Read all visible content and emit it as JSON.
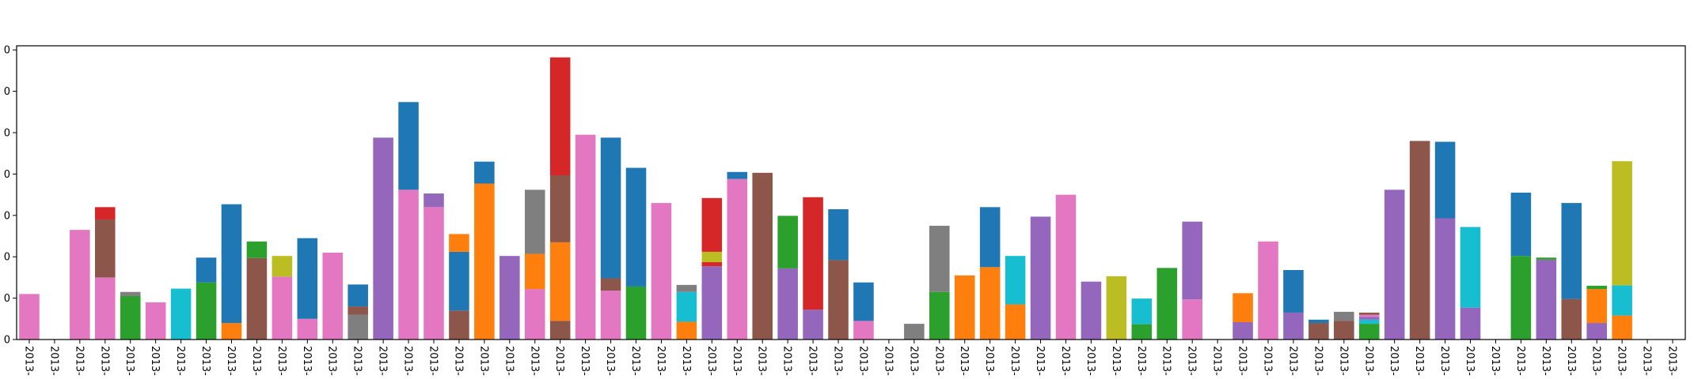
{
  "chart_data": {
    "type": "bar",
    "stacked": true,
    "title": "",
    "xlabel": "",
    "ylabel": "",
    "ylim": [
      0,
      7.1
    ],
    "yticks": [
      0,
      1,
      2,
      3,
      4,
      5,
      6,
      7
    ],
    "ytick_labels": [
      "0",
      "0",
      "0",
      "0",
      "0",
      "0",
      "0",
      "0"
    ],
    "xtick_label": "2013-",
    "grid": false,
    "legend": "none",
    "palette": {
      "blue": "#1f77b4",
      "orange": "#ff7f0e",
      "green": "#2ca02c",
      "red": "#d62728",
      "purple": "#9467bd",
      "brown": "#8c564b",
      "pink": "#e377c2",
      "gray": "#7f7f7f",
      "olive": "#bcbd22",
      "cyan": "#17becf"
    },
    "bars": [
      {
        "label": "2013-",
        "segments": [
          {
            "color": "pink",
            "value": 1.1
          }
        ]
      },
      {
        "label": "2013-",
        "segments": []
      },
      {
        "label": "2013-",
        "segments": [
          {
            "color": "pink",
            "value": 2.65
          }
        ]
      },
      {
        "label": "2013-",
        "segments": [
          {
            "color": "pink",
            "value": 1.5
          },
          {
            "color": "brown",
            "value": 1.4
          },
          {
            "color": "red",
            "value": 0.3
          }
        ]
      },
      {
        "label": "2013-",
        "segments": [
          {
            "color": "green",
            "value": 1.05
          },
          {
            "color": "gray",
            "value": 0.1
          }
        ]
      },
      {
        "label": "2013-",
        "segments": [
          {
            "color": "pink",
            "value": 0.9
          }
        ]
      },
      {
        "label": "2013-",
        "segments": [
          {
            "color": "cyan",
            "value": 1.23
          }
        ]
      },
      {
        "label": "2013-",
        "segments": [
          {
            "color": "green",
            "value": 1.38
          },
          {
            "color": "blue",
            "value": 0.6
          }
        ]
      },
      {
        "label": "2013-",
        "segments": [
          {
            "color": "orange",
            "value": 0.4
          },
          {
            "color": "blue",
            "value": 2.87
          }
        ]
      },
      {
        "label": "2013-",
        "segments": [
          {
            "color": "brown",
            "value": 1.97
          },
          {
            "color": "green",
            "value": 0.4
          }
        ]
      },
      {
        "label": "2013-",
        "segments": [
          {
            "color": "pink",
            "value": 1.52
          },
          {
            "color": "olive",
            "value": 0.5
          }
        ]
      },
      {
        "label": "2013-",
        "segments": [
          {
            "color": "pink",
            "value": 0.5
          },
          {
            "color": "blue",
            "value": 1.95
          }
        ]
      },
      {
        "label": "2013-",
        "segments": [
          {
            "color": "pink",
            "value": 2.1
          }
        ]
      },
      {
        "label": "2013-",
        "segments": [
          {
            "color": "gray",
            "value": 0.6
          },
          {
            "color": "brown",
            "value": 0.2
          },
          {
            "color": "blue",
            "value": 0.53
          }
        ]
      },
      {
        "label": "2013-",
        "segments": [
          {
            "color": "purple",
            "value": 4.88
          }
        ]
      },
      {
        "label": "2013-",
        "segments": [
          {
            "color": "pink",
            "value": 3.62
          },
          {
            "color": "blue",
            "value": 2.12
          }
        ]
      },
      {
        "label": "2013-",
        "segments": [
          {
            "color": "pink",
            "value": 3.2
          },
          {
            "color": "purple",
            "value": 0.33
          }
        ]
      },
      {
        "label": "2013-",
        "segments": [
          {
            "color": "brown",
            "value": 0.7
          },
          {
            "color": "blue",
            "value": 1.42
          },
          {
            "color": "orange",
            "value": 0.43
          }
        ]
      },
      {
        "label": "2013-",
        "segments": [
          {
            "color": "orange",
            "value": 3.77
          },
          {
            "color": "blue",
            "value": 0.53
          }
        ]
      },
      {
        "label": "2013-",
        "segments": [
          {
            "color": "purple",
            "value": 2.02
          }
        ]
      },
      {
        "label": "2013-",
        "segments": [
          {
            "color": "pink",
            "value": 1.22
          },
          {
            "color": "orange",
            "value": 0.85
          },
          {
            "color": "gray",
            "value": 1.55
          }
        ]
      },
      {
        "label": "2013-",
        "segments": [
          {
            "color": "brown",
            "value": 0.45
          },
          {
            "color": "orange",
            "value": 1.9
          },
          {
            "color": "brown",
            "value": 1.62
          },
          {
            "color": "red",
            "value": 2.85
          }
        ]
      },
      {
        "label": "2013-",
        "segments": [
          {
            "color": "pink",
            "value": 4.95
          }
        ]
      },
      {
        "label": "2013-",
        "segments": [
          {
            "color": "pink",
            "value": 1.18
          },
          {
            "color": "brown",
            "value": 0.3
          },
          {
            "color": "blue",
            "value": 3.4
          }
        ]
      },
      {
        "label": "2013-",
        "segments": [
          {
            "color": "green",
            "value": 1.28
          },
          {
            "color": "blue",
            "value": 2.87
          }
        ]
      },
      {
        "label": "2013-",
        "segments": [
          {
            "color": "pink",
            "value": 3.3
          }
        ]
      },
      {
        "label": "2013-",
        "segments": [
          {
            "color": "orange",
            "value": 0.43
          },
          {
            "color": "cyan",
            "value": 0.72
          },
          {
            "color": "gray",
            "value": 0.17
          }
        ]
      },
      {
        "label": "2013-",
        "segments": [
          {
            "color": "purple",
            "value": 1.77
          },
          {
            "color": "red",
            "value": 0.1
          },
          {
            "color": "olive",
            "value": 0.25
          },
          {
            "color": "red",
            "value": 1.3
          }
        ]
      },
      {
        "label": "2013-",
        "segments": [
          {
            "color": "pink",
            "value": 3.88
          },
          {
            "color": "blue",
            "value": 0.17
          }
        ]
      },
      {
        "label": "2013-",
        "segments": [
          {
            "color": "brown",
            "value": 4.03
          }
        ]
      },
      {
        "label": "2013-",
        "segments": [
          {
            "color": "purple",
            "value": 1.72
          },
          {
            "color": "green",
            "value": 1.27
          }
        ]
      },
      {
        "label": "2013-",
        "segments": [
          {
            "color": "purple",
            "value": 0.72
          },
          {
            "color": "red",
            "value": 2.72
          }
        ]
      },
      {
        "label": "2013-",
        "segments": [
          {
            "color": "brown",
            "value": 1.92
          },
          {
            "color": "blue",
            "value": 1.23
          }
        ]
      },
      {
        "label": "2013-",
        "segments": [
          {
            "color": "pink",
            "value": 0.45
          },
          {
            "color": "blue",
            "value": 0.93
          }
        ]
      },
      {
        "label": "2013-",
        "segments": []
      },
      {
        "label": "2013-",
        "segments": [
          {
            "color": "gray",
            "value": 0.38
          }
        ]
      },
      {
        "label": "2013-",
        "segments": [
          {
            "color": "green",
            "value": 1.15
          },
          {
            "color": "gray",
            "value": 1.6
          }
        ]
      },
      {
        "label": "2013-",
        "segments": [
          {
            "color": "orange",
            "value": 1.55
          }
        ]
      },
      {
        "label": "2013-",
        "segments": [
          {
            "color": "orange",
            "value": 1.75
          },
          {
            "color": "blue",
            "value": 1.45
          }
        ]
      },
      {
        "label": "2013-",
        "segments": [
          {
            "color": "orange",
            "value": 0.85
          },
          {
            "color": "cyan",
            "value": 1.17
          }
        ]
      },
      {
        "label": "2013-",
        "segments": [
          {
            "color": "purple",
            "value": 2.97
          }
        ]
      },
      {
        "label": "2013-",
        "segments": [
          {
            "color": "pink",
            "value": 3.5
          }
        ]
      },
      {
        "label": "2013-",
        "segments": [
          {
            "color": "purple",
            "value": 1.4
          }
        ]
      },
      {
        "label": "2013-",
        "segments": [
          {
            "color": "olive",
            "value": 1.53
          }
        ]
      },
      {
        "label": "2013-",
        "segments": [
          {
            "color": "green",
            "value": 0.37
          },
          {
            "color": "cyan",
            "value": 0.62
          }
        ]
      },
      {
        "label": "2013-",
        "segments": [
          {
            "color": "green",
            "value": 1.73
          }
        ]
      },
      {
        "label": "2013-",
        "segments": [
          {
            "color": "pink",
            "value": 0.97
          },
          {
            "color": "purple",
            "value": 1.88
          }
        ]
      },
      {
        "label": "2013-",
        "segments": []
      },
      {
        "label": "2013-",
        "segments": [
          {
            "color": "purple",
            "value": 0.42
          },
          {
            "color": "orange",
            "value": 0.7
          }
        ]
      },
      {
        "label": "2013-",
        "segments": [
          {
            "color": "pink",
            "value": 2.37
          }
        ]
      },
      {
        "label": "2013-",
        "segments": [
          {
            "color": "purple",
            "value": 0.65
          },
          {
            "color": "blue",
            "value": 1.03
          }
        ]
      },
      {
        "label": "2013-",
        "segments": [
          {
            "color": "brown",
            "value": 0.4
          },
          {
            "color": "blue",
            "value": 0.08
          }
        ]
      },
      {
        "label": "2013-",
        "segments": [
          {
            "color": "brown",
            "value": 0.45
          },
          {
            "color": "gray",
            "value": 0.22
          }
        ]
      },
      {
        "label": "2013-",
        "segments": [
          {
            "color": "green",
            "value": 0.38
          },
          {
            "color": "cyan",
            "value": 0.1
          },
          {
            "color": "purple",
            "value": 0.07
          },
          {
            "color": "pink",
            "value": 0.05
          },
          {
            "color": "brown",
            "value": 0.05
          }
        ]
      },
      {
        "label": "2013-",
        "segments": [
          {
            "color": "purple",
            "value": 3.62
          }
        ]
      },
      {
        "label": "2013-",
        "segments": [
          {
            "color": "brown",
            "value": 4.8
          }
        ]
      },
      {
        "label": "2013-",
        "segments": [
          {
            "color": "purple",
            "value": 2.93
          },
          {
            "color": "blue",
            "value": 1.85
          }
        ]
      },
      {
        "label": "2013-",
        "segments": [
          {
            "color": "purple",
            "value": 0.77
          },
          {
            "color": "cyan",
            "value": 1.95
          }
        ]
      },
      {
        "label": "2013-",
        "segments": []
      },
      {
        "label": "2013-",
        "segments": [
          {
            "color": "green",
            "value": 2.02
          },
          {
            "color": "blue",
            "value": 1.53
          }
        ]
      },
      {
        "label": "2013-",
        "segments": [
          {
            "color": "purple",
            "value": 1.93
          },
          {
            "color": "green",
            "value": 0.05
          }
        ]
      },
      {
        "label": "2013-",
        "segments": [
          {
            "color": "brown",
            "value": 0.98
          },
          {
            "color": "blue",
            "value": 2.32
          }
        ]
      },
      {
        "label": "2013-",
        "segments": [
          {
            "color": "purple",
            "value": 0.4
          },
          {
            "color": "orange",
            "value": 0.82
          },
          {
            "color": "green",
            "value": 0.08
          }
        ]
      },
      {
        "label": "2013-",
        "segments": [
          {
            "color": "orange",
            "value": 0.58
          },
          {
            "color": "cyan",
            "value": 0.73
          },
          {
            "color": "olive",
            "value": 3.0
          }
        ]
      },
      {
        "label": "2013-",
        "segments": []
      },
      {
        "label": "2013-",
        "segments": []
      }
    ]
  }
}
